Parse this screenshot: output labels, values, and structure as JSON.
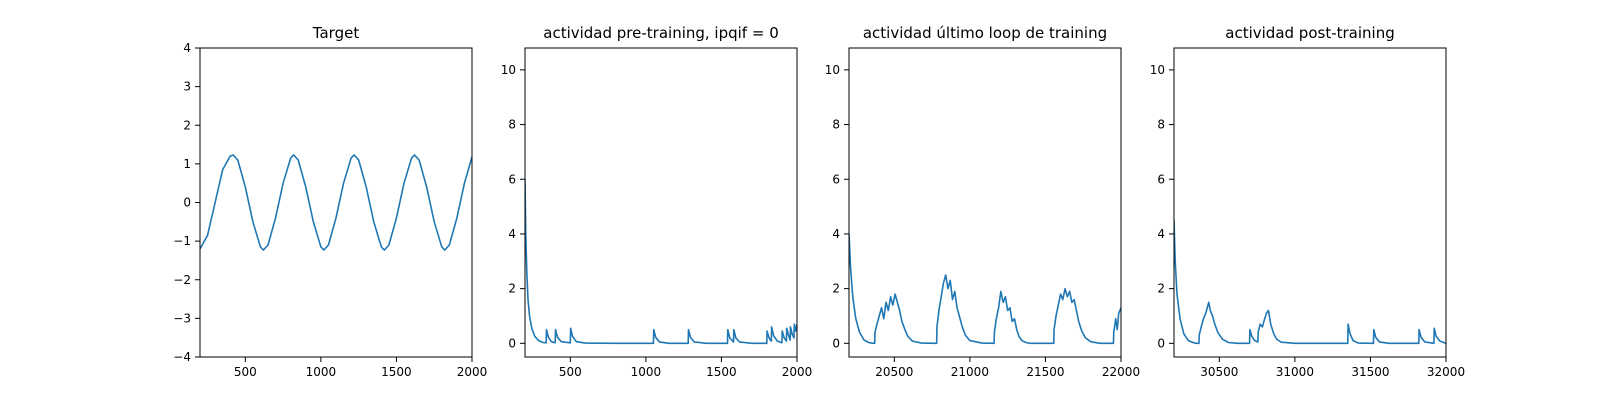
{
  "chart_data": [
    {
      "type": "line",
      "title": "Target",
      "xlabel": "",
      "ylabel": "",
      "xlim": [
        200,
        2000
      ],
      "ylim": [
        -4,
        4
      ],
      "xticks": [
        500,
        1000,
        1500,
        2000
      ],
      "yticks": [
        -4,
        -3,
        -2,
        -1,
        0,
        1,
        2,
        3,
        4
      ],
      "grid": false,
      "series": [
        {
          "color": "#1f77b4",
          "x": [
            200,
            250,
            300,
            350,
            400,
            420,
            450,
            500,
            550,
            600,
            620,
            650,
            700,
            750,
            800,
            820,
            850,
            900,
            950,
            1000,
            1020,
            1050,
            1100,
            1150,
            1200,
            1220,
            1250,
            1300,
            1350,
            1400,
            1420,
            1450,
            1500,
            1550,
            1600,
            1620,
            1650,
            1700,
            1750,
            1800,
            1820,
            1850,
            1900,
            1950,
            2000
          ],
          "y": [
            -1.2,
            -0.85,
            0.0,
            0.85,
            1.2,
            1.23,
            1.1,
            0.4,
            -0.5,
            -1.15,
            -1.23,
            -1.1,
            -0.4,
            0.5,
            1.15,
            1.23,
            1.1,
            0.4,
            -0.5,
            -1.15,
            -1.23,
            -1.1,
            -0.4,
            0.5,
            1.15,
            1.23,
            1.1,
            0.4,
            -0.5,
            -1.15,
            -1.23,
            -1.1,
            -0.4,
            0.5,
            1.15,
            1.23,
            1.1,
            0.4,
            -0.5,
            -1.15,
            -1.23,
            -1.1,
            -0.4,
            0.5,
            1.18
          ]
        }
      ]
    },
    {
      "type": "line",
      "title": "actividad pre-training, ipqif = 0",
      "xlabel": "",
      "ylabel": "",
      "xlim": [
        200,
        2000
      ],
      "ylim": [
        -0.5,
        10.8
      ],
      "xticks": [
        500,
        1000,
        1500,
        2000
      ],
      "yticks": [
        0,
        2,
        4,
        6,
        8,
        10
      ],
      "grid": false,
      "series": [
        {
          "color": "#1f77b4",
          "x": [
            200,
            205,
            212,
            220,
            230,
            245,
            265,
            290,
            320,
            340,
            342,
            355,
            375,
            400,
            402,
            415,
            440,
            500,
            502,
            515,
            540,
            600,
            800,
            1050,
            1052,
            1065,
            1090,
            1150,
            1280,
            1282,
            1295,
            1320,
            1400,
            1540,
            1542,
            1555,
            1580,
            1582,
            1595,
            1620,
            1700,
            1800,
            1802,
            1815,
            1830,
            1832,
            1845,
            1870,
            1900,
            1902,
            1915,
            1930,
            1932,
            1945,
            1955,
            1957,
            1970,
            1980,
            1982,
            1992,
            2000
          ],
          "y": [
            6.0,
            4.0,
            2.6,
            1.6,
            1.0,
            0.55,
            0.25,
            0.1,
            0.03,
            0.02,
            0.5,
            0.22,
            0.06,
            0.02,
            0.5,
            0.22,
            0.06,
            0.02,
            0.55,
            0.25,
            0.06,
            0.01,
            0.0,
            0.0,
            0.5,
            0.22,
            0.05,
            0.0,
            0.0,
            0.5,
            0.22,
            0.05,
            0.0,
            0.0,
            0.5,
            0.2,
            0.05,
            0.5,
            0.2,
            0.05,
            0.0,
            0.0,
            0.45,
            0.2,
            0.08,
            0.6,
            0.28,
            0.08,
            0.02,
            0.45,
            0.2,
            0.08,
            0.55,
            0.28,
            0.12,
            0.6,
            0.3,
            0.2,
            0.7,
            0.45,
            0.7
          ]
        }
      ]
    },
    {
      "type": "line",
      "title": "actividad último loop de training",
      "xlabel": "",
      "ylabel": "",
      "xlim": [
        20200,
        22000
      ],
      "ylim": [
        -0.5,
        10.8
      ],
      "xticks": [
        20500,
        21000,
        21500,
        22000
      ],
      "yticks": [
        0,
        2,
        4,
        6,
        8,
        10
      ],
      "grid": false,
      "series": [
        {
          "color": "#1f77b4",
          "x": [
            20200,
            20210,
            20225,
            20245,
            20270,
            20300,
            20330,
            20350,
            20370,
            20372,
            20385,
            20400,
            20415,
            20430,
            20445,
            20460,
            20475,
            20490,
            20505,
            20520,
            20535,
            20550,
            20570,
            20590,
            20620,
            20680,
            20780,
            20782,
            20795,
            20810,
            20825,
            20840,
            20855,
            20870,
            20885,
            20900,
            20915,
            20930,
            20950,
            20970,
            21000,
            21080,
            21160,
            21162,
            21175,
            21190,
            21205,
            21220,
            21235,
            21250,
            21265,
            21280,
            21295,
            21310,
            21325,
            21345,
            21370,
            21400,
            21460,
            21555,
            21557,
            21570,
            21585,
            21600,
            21615,
            21630,
            21645,
            21660,
            21675,
            21690,
            21705,
            21720,
            21740,
            21765,
            21800,
            21860,
            21950,
            21952,
            21965,
            21975,
            21985,
            22000
          ],
          "y": [
            4.0,
            2.8,
            1.7,
            0.9,
            0.4,
            0.12,
            0.03,
            0.01,
            0.0,
            0.4,
            0.7,
            1.0,
            1.3,
            0.9,
            1.5,
            1.2,
            1.7,
            1.4,
            1.8,
            1.5,
            1.2,
            0.8,
            0.5,
            0.25,
            0.08,
            0.01,
            0.0,
            0.6,
            1.2,
            1.7,
            2.2,
            2.5,
            2.0,
            2.3,
            1.6,
            1.9,
            1.3,
            1.0,
            0.6,
            0.3,
            0.1,
            0.01,
            0.0,
            0.4,
            0.9,
            1.3,
            1.9,
            1.5,
            1.7,
            1.2,
            1.3,
            0.8,
            0.9,
            0.5,
            0.25,
            0.1,
            0.03,
            0.0,
            0.0,
            0.0,
            0.5,
            1.0,
            1.4,
            1.8,
            1.6,
            2.0,
            1.7,
            1.9,
            1.5,
            1.6,
            1.2,
            0.8,
            0.45,
            0.2,
            0.06,
            0.0,
            0.0,
            0.4,
            0.9,
            0.5,
            1.1,
            1.3
          ]
        }
      ]
    },
    {
      "type": "line",
      "title": "actividad post-training",
      "xlabel": "",
      "ylabel": "",
      "xlim": [
        30200,
        32000
      ],
      "ylim": [
        -0.5,
        10.8
      ],
      "xticks": [
        30500,
        31000,
        31500,
        32000
      ],
      "yticks": [
        0,
        2,
        4,
        6,
        8,
        10
      ],
      "grid": false,
      "series": [
        {
          "color": "#1f77b4",
          "x": [
            30200,
            30208,
            30220,
            30240,
            30265,
            30295,
            30330,
            30350,
            30365,
            30367,
            30380,
            30395,
            30410,
            30420,
            30430,
            30440,
            30455,
            30470,
            30490,
            30520,
            30560,
            30620,
            30700,
            30702,
            30715,
            30735,
            30755,
            30757,
            30770,
            30785,
            30800,
            30812,
            30825,
            30840,
            30860,
            30880,
            30910,
            31000,
            31200,
            31350,
            31352,
            31365,
            31385,
            31420,
            31520,
            31522,
            31535,
            31560,
            31620,
            31820,
            31822,
            31835,
            31860,
            31920,
            31922,
            31935,
            31960,
            32000
          ],
          "y": [
            4.5,
            3.0,
            1.8,
            0.9,
            0.35,
            0.1,
            0.02,
            0.0,
            0.0,
            0.3,
            0.6,
            0.9,
            1.1,
            1.3,
            1.5,
            1.2,
            1.0,
            0.7,
            0.4,
            0.15,
            0.03,
            0.0,
            0.0,
            0.5,
            0.25,
            0.1,
            0.05,
            0.4,
            0.7,
            0.6,
            0.9,
            1.1,
            1.2,
            0.7,
            0.35,
            0.15,
            0.04,
            0.0,
            0.0,
            0.0,
            0.7,
            0.35,
            0.1,
            0.01,
            0.0,
            0.5,
            0.22,
            0.05,
            0.0,
            0.0,
            0.5,
            0.22,
            0.05,
            0.0,
            0.55,
            0.25,
            0.08,
            0.0
          ]
        }
      ]
    }
  ]
}
